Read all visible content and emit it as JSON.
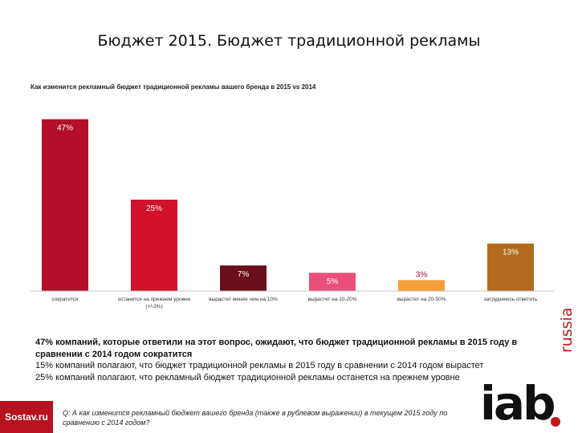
{
  "slide": {
    "title": "Бюджет 2015. Бюджет традиционной рекламы"
  },
  "chart_data": {
    "type": "bar",
    "title": "Как изменится рекламный бюджет традиционной рекламы вашего бренда в 2015 vs 2014",
    "categories": [
      "сократится",
      "останется на прежнем уровне (+/-3%)",
      "вырастет менее чем на 10%",
      "вырастет на 10-20%",
      "вырастет на 20-50%",
      "затрудняюсь ответить"
    ],
    "values": [
      47,
      25,
      7,
      5,
      3,
      13
    ],
    "value_labels": [
      "47%",
      "25%",
      "7%",
      "5%",
      "3%",
      "13%"
    ],
    "colors": [
      "#b2102a",
      "#d2112b",
      "#6a0f1c",
      "#ea4f79",
      "#f5a03a",
      "#b26a1e"
    ],
    "ylim": [
      0,
      50
    ],
    "xlabel": "",
    "ylabel": "",
    "grid": false,
    "legend": "none"
  },
  "notes": {
    "line1": "47% компаний, которые ответили на этот вопрос, ожидают, что бюджет традиционной рекламы в 2015 году в сравнении с 2014 годом сократится",
    "line2": "15% компаний полагают, что бюджет традиционной рекламы в 2015 году в сравнении с 2014 годом вырастет",
    "line3": "25% компаний полагают, что рекламный бюджет традиционной рекламы останется на прежнем уровне"
  },
  "footer": {
    "sostav_logo": "Sostav.ru",
    "question": "Q: А как изменится рекламный бюджет вашего бренда (также в рублевом выражении) в текущем 2015 году по сравнению с 2014 годом?",
    "iab_logo": "iab",
    "iab_russia": "russia"
  }
}
